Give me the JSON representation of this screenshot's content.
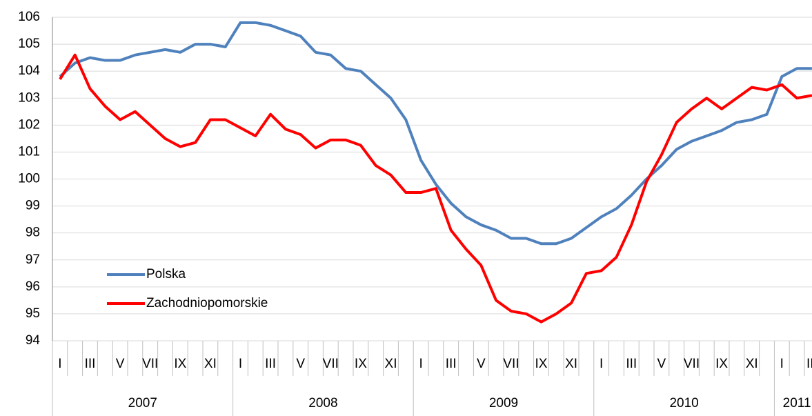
{
  "chart_data": {
    "type": "line",
    "categories": [
      "I",
      null,
      "III",
      null,
      "V",
      null,
      "VII",
      null,
      "IX",
      null,
      "XI",
      null,
      "I",
      null,
      "III",
      null,
      "V",
      null,
      "VII",
      null,
      "IX",
      null,
      "XI",
      null,
      "I",
      null,
      "III",
      null,
      "V",
      null,
      "VII",
      null,
      "IX",
      null,
      "XI",
      null,
      "I",
      null,
      "III",
      null,
      "V",
      null,
      "VII",
      null,
      "IX",
      null,
      "XI",
      null,
      "I",
      null,
      "III"
    ],
    "years": [
      "2007",
      "2008",
      "2009",
      "2010",
      "2011"
    ],
    "series": [
      {
        "name": "Polska",
        "color": "#4f81bd",
        "values": [
          103.8,
          104.3,
          104.5,
          104.4,
          104.4,
          104.6,
          104.7,
          104.8,
          104.7,
          105.0,
          105.0,
          104.9,
          105.8,
          105.8,
          105.7,
          105.5,
          105.3,
          104.7,
          104.6,
          104.1,
          104.0,
          103.5,
          103.0,
          102.2,
          100.7,
          99.8,
          99.1,
          98.6,
          98.3,
          98.1,
          97.8,
          97.8,
          97.6,
          97.6,
          97.8,
          98.2,
          98.6,
          98.9,
          99.4,
          100.0,
          100.5,
          101.1,
          101.4,
          101.6,
          101.8,
          102.1,
          102.2,
          102.4,
          103.8,
          104.1,
          104.1
        ]
      },
      {
        "name": "Zachodniopomorskie",
        "color": "#ff0000",
        "values": [
          103.7,
          104.6,
          103.35,
          102.7,
          102.2,
          102.5,
          102.0,
          101.5,
          101.2,
          101.35,
          102.2,
          102.2,
          101.9,
          101.6,
          102.4,
          101.85,
          101.65,
          101.15,
          101.45,
          101.45,
          101.25,
          100.5,
          100.15,
          99.5,
          99.5,
          99.65,
          98.1,
          97.4,
          96.8,
          95.5,
          95.1,
          95.0,
          94.7,
          95.0,
          95.4,
          96.5,
          96.6,
          97.1,
          98.3,
          99.9,
          100.9,
          102.1,
          102.6,
          103.0,
          102.6,
          103.0,
          103.4,
          103.3,
          103.5,
          103.0,
          103.1
        ]
      }
    ],
    "ylim": [
      94,
      106
    ],
    "yticks": [
      94,
      95,
      96,
      97,
      98,
      99,
      100,
      101,
      102,
      103,
      104,
      105,
      106
    ],
    "grid": true,
    "legend": "lower left"
  }
}
